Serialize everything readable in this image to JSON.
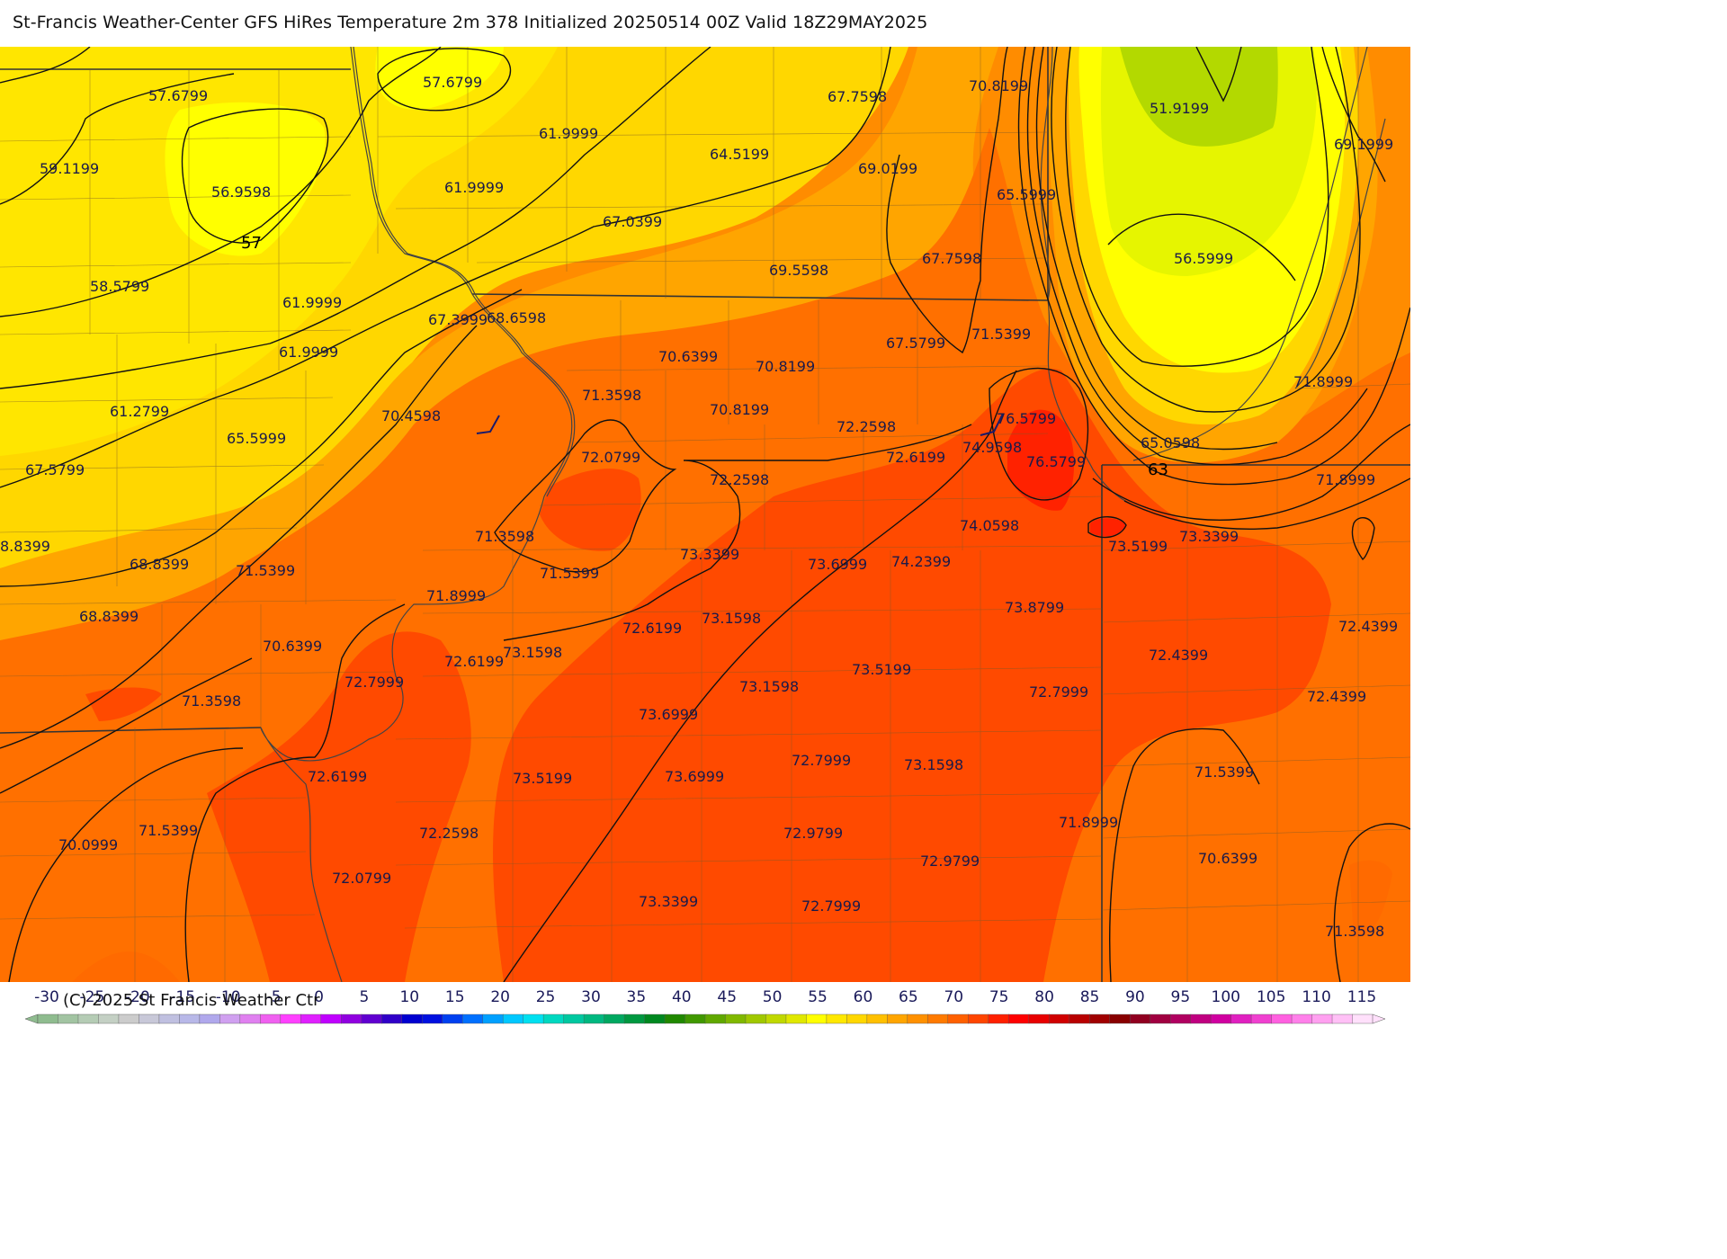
{
  "title": "St-Francis Weather-Center GFS HiRes Temperature 2m  378 Initialized 20250514 00Z Valid 18Z29MAY2025",
  "credit": "(C) 2025 St Francis Weather Ctr",
  "map": {
    "background_color": "#ff8c00",
    "regions": [
      {
        "name": "yellow-north",
        "color": "#ffd700"
      },
      {
        "name": "light-yellow-core",
        "color": "#ffff00"
      },
      {
        "name": "orange-mid",
        "color": "#ffa500"
      },
      {
        "name": "dark-orange",
        "color": "#ff6a00"
      },
      {
        "name": "red-orange",
        "color": "#ff4500"
      },
      {
        "name": "lime-cold-pool",
        "color": "#e6f500"
      },
      {
        "name": "green-cold-core",
        "color": "#b3d900"
      },
      {
        "name": "red-hot-spot",
        "color": "#ff2200"
      }
    ],
    "values": [
      "57.6799",
      "57.6799",
      "67.7598",
      "70.8199",
      "51.9199",
      "69.1999",
      "59.1199",
      "56.9598",
      "61.9999",
      "61.9999",
      "64.5199",
      "69.0199",
      "65.5999",
      "67.0399",
      "58.5799",
      "61.9999",
      "69.5598",
      "67.7598",
      "56.5999",
      "67.3999",
      "68.6598",
      "61.9999",
      "67.5799",
      "71.5399",
      "70.6399",
      "70.8199",
      "71.8999",
      "61.2799",
      "71.3598",
      "70.4598",
      "70.8199",
      "72.2598",
      "76.5799",
      "65.5999",
      "74.9598",
      "65.0598",
      "67.5799",
      "72.0799",
      "72.6199",
      "76.5799",
      "72.2598",
      "71.8999",
      "8.8399",
      "74.0598",
      "71.3598",
      "73.5199",
      "73.3399",
      "68.8399",
      "71.5399",
      "71.5399",
      "73.3399",
      "73.6999",
      "74.2399",
      "71.8999",
      "68.8399",
      "73.1598",
      "73.8799",
      "72.6199",
      "72.4399",
      "70.6399",
      "72.6199",
      "73.1598",
      "72.4399",
      "72.7999",
      "73.5199",
      "72.7999",
      "72.4399",
      "71.3598",
      "73.1598",
      "73.6999",
      "72.7999",
      "73.1598",
      "72.6199",
      "73.6999",
      "71.5399",
      "73.5199",
      "71.8999",
      "70.0999",
      "71.5399",
      "72.2598",
      "72.9799",
      "72.9799",
      "70.6399",
      "72.0799",
      "73.3399",
      "72.7999",
      "71.3598"
    ],
    "contour_labels": [
      "57",
      "63"
    ]
  },
  "scale": {
    "ticks": [
      "-30",
      "-25",
      "-20",
      "-15",
      "-10",
      "-5",
      "0",
      "5",
      "10",
      "15",
      "20",
      "25",
      "30",
      "35",
      "40",
      "45",
      "50",
      "55",
      "60",
      "65",
      "70",
      "75",
      "80",
      "85",
      "90",
      "95",
      "100",
      "105",
      "110",
      "115"
    ],
    "colors": [
      "#8fbc8f",
      "#a2c4a2",
      "#b5ccb5",
      "#c4d0c4",
      "#cccccc",
      "#c8c8d8",
      "#c0c0e0",
      "#b8b8e8",
      "#b0a8ec",
      "#d0a0f0",
      "#e080f0",
      "#f060f0",
      "#ff40ff",
      "#e020ff",
      "#c000ff",
      "#9000e0",
      "#6000d0",
      "#3000c8",
      "#0000d0",
      "#0010e0",
      "#0040f0",
      "#0070ff",
      "#00a0ff",
      "#00c8ff",
      "#00e0f0",
      "#00d8c0",
      "#00c8a0",
      "#00b880",
      "#00a860",
      "#009840",
      "#008820",
      "#208800",
      "#409800",
      "#60a800",
      "#80b800",
      "#a0c800",
      "#c0d800",
      "#e0e800",
      "#ffff00",
      "#ffe800",
      "#ffd700",
      "#ffc000",
      "#ffa500",
      "#ff9000",
      "#ff7a00",
      "#ff6000",
      "#ff4500",
      "#ff2000",
      "#ff0000",
      "#e80000",
      "#d00000",
      "#b80000",
      "#a00000",
      "#880000",
      "#900020",
      "#a00040",
      "#b00060",
      "#c00080",
      "#d000a0",
      "#e020c0",
      "#f040d0",
      "#ff60e0",
      "#ff80ea",
      "#ffa0f0",
      "#ffc0f6",
      "#ffe0fb"
    ]
  }
}
